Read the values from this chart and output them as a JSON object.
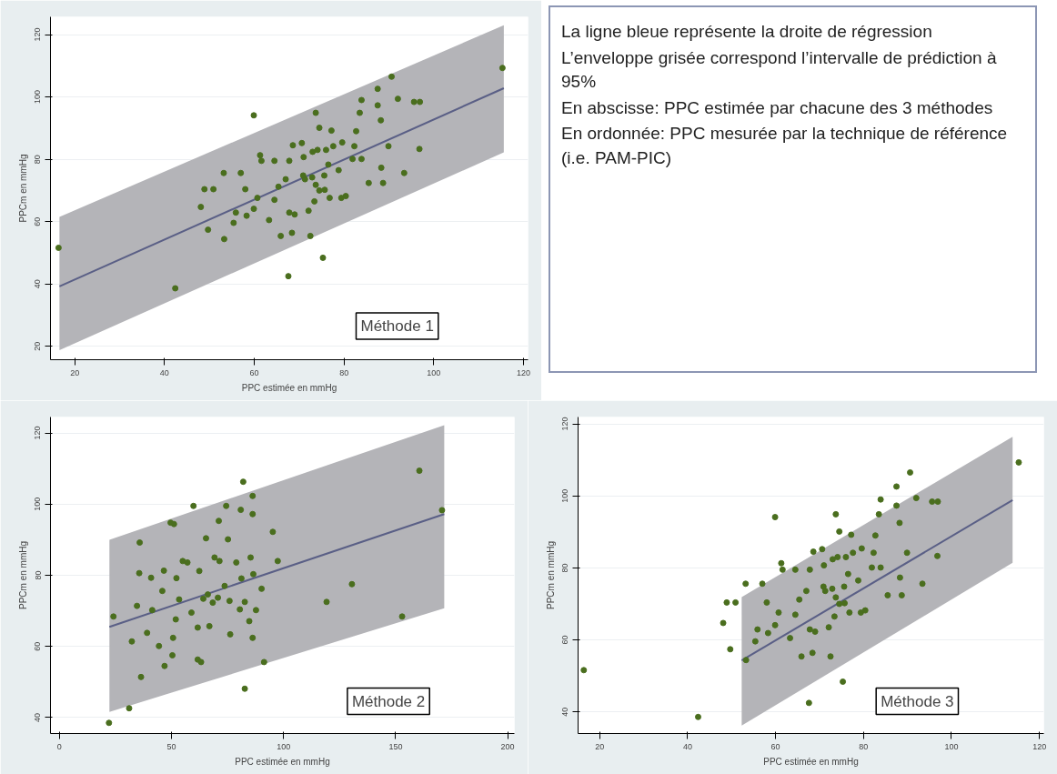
{
  "chart_data": [
    {
      "type": "scatter",
      "title": "Méthode 1",
      "xlabel": "PPC estimée en mmHg",
      "ylabel": "PPCm en mmHg",
      "xlim": [
        14.6,
        121
      ],
      "ylim": [
        15.7,
        125.7
      ],
      "xticks": [
        20,
        40,
        60,
        80,
        100,
        120
      ],
      "yticks": [
        20,
        40,
        60,
        80,
        100,
        120
      ],
      "grid": "y",
      "marker": "circle",
      "series": [
        {
          "type": "line",
          "marker": "none",
          "color": "#5a5f86",
          "x": [
            16.6,
            115.6
          ],
          "values": [
            39.2,
            102.8
          ],
          "lower": [
            18.8,
            82.2
          ],
          "upper": [
            61.5,
            123
          ]
        },
        {
          "type": "scatter",
          "color": "#4a6e1e",
          "x": [
            16.4,
            42.4,
            59.9,
            67.6,
            75.3,
            72.5,
            65.9,
            68.4,
            53.3,
            49.7,
            48.1,
            48.9,
            50.9,
            53.2,
            57.0,
            58.0,
            55.4,
            55.9,
            58.3,
            59.9,
            60.7,
            61.3,
            61.6,
            64.5,
            63.3,
            64.5,
            65.4,
            67.0,
            67.8,
            68.6,
            70.6,
            67.8,
            69.0,
            72.1,
            71.3,
            72.9,
            73.7,
            74.5,
            71.0,
            73.0,
            74.1,
            73.7,
            74.5,
            77.2,
            76.0,
            76.5,
            75.6,
            76.8,
            78.8,
            77.6,
            79.6,
            79.4,
            80.4,
            81.9,
            82.3,
            82.7,
            83.5,
            83.9,
            83.9,
            85.5,
            87.5,
            87.5,
            88.2,
            88.3,
            88.7,
            89.9,
            90.6,
            92.0,
            93.4,
            95.6,
            96.9,
            96.8,
            115.3,
            73.4,
            75.7,
            70.9
          ],
          "values": [
            51.6,
            38.6,
            94.1,
            42.5,
            48.4,
            55.4,
            55.4,
            56.4,
            54.4,
            57.4,
            64.7,
            70.4,
            70.4,
            75.6,
            75.6,
            70.4,
            59.6,
            62.9,
            61.9,
            64.1,
            67.6,
            81.3,
            79.5,
            79.5,
            60.5,
            67.0,
            71.2,
            73.6,
            79.5,
            84.5,
            85.2,
            62.9,
            62.3,
            63.5,
            73.6,
            74.2,
            71.8,
            70.0,
            80.7,
            82.4,
            83.0,
            94.9,
            90.1,
            89.2,
            83.0,
            78.3,
            74.8,
            67.6,
            76.5,
            84.2,
            85.4,
            67.6,
            68.2,
            80.1,
            84.2,
            89.0,
            94.9,
            99.0,
            80.1,
            72.4,
            102.6,
            97.3,
            92.5,
            77.3,
            72.4,
            84.2,
            106.5,
            99.4,
            75.6,
            98.4,
            98.4,
            83.3,
            109.3,
            66.5,
            70.2,
            74.8
          ]
        }
      ]
    },
    {
      "type": "other",
      "annotations": [
        "La ligne bleue représente la droite de régression",
        "L’enveloppe grisée correspond l’intervalle de prédiction à 95%",
        "En abscisse: PPC estimée par chacune des 3 méthodes",
        "En ordonnée: PPC mesurée par la technique de référence (i.e. PAM-PIC)"
      ]
    },
    {
      "type": "scatter",
      "title": "Méthode 2",
      "xlabel": "PPC estimée en mmHg",
      "ylabel": "PPCm en mmHg",
      "xlim": [
        -4,
        203
      ],
      "ylim": [
        35.5,
        124.5
      ],
      "xticks": [
        0,
        50,
        100,
        150,
        200
      ],
      "yticks": [
        40,
        60,
        80,
        100,
        120
      ],
      "grid": "y",
      "marker": "circle",
      "series": [
        {
          "type": "line",
          "marker": "none",
          "color": "#5a5f86",
          "x": [
            22.3,
            171.7
          ],
          "values": [
            65.5,
            97.2
          ],
          "lower": [
            41.6,
            70.7
          ],
          "upper": [
            90.0,
            122.2
          ]
        },
        {
          "type": "scatter",
          "color": "#4a6e1e",
          "x": [
            22.1,
            31.1,
            36.4,
            32.3,
            24.1,
            34.6,
            35.6,
            35.8,
            40.9,
            41.4,
            39.1,
            44.4,
            46.9,
            50.4,
            50.7,
            45.9,
            46.6,
            49.6,
            51.1,
            52.2,
            51.9,
            53.4,
            55.0,
            57.1,
            58.9,
            59.8,
            61.7,
            63.2,
            61.7,
            62.4,
            64.2,
            65.4,
            66.2,
            66.9,
            68.4,
            69.2,
            70.7,
            71.1,
            71.4,
            73.7,
            74.4,
            75.2,
            75.9,
            76.2,
            78.9,
            80.9,
            82.0,
            81.2,
            82.7,
            82.7,
            80.5,
            84.7,
            85.3,
            86.2,
            86.2,
            86.2,
            86.5,
            87.7,
            90.2,
            91.3,
            95.2,
            97.4,
            119.2,
            130.5,
            152.9,
            160.6,
            170.7
          ],
          "values": [
            38.5,
            42.6,
            51.4,
            61.4,
            68.4,
            71.4,
            80.6,
            89.2,
            79.3,
            70.2,
            63.8,
            60.1,
            54.5,
            57.5,
            62.4,
            75.6,
            81.3,
            94.8,
            94.4,
            79.2,
            67.6,
            73.2,
            84.0,
            83.6,
            69.5,
            99.5,
            56.3,
            55.6,
            65.3,
            81.2,
            73.4,
            90.4,
            74.6,
            65.7,
            72.3,
            85.0,
            73.7,
            95.3,
            84.0,
            77.0,
            99.5,
            90.1,
            72.8,
            63.4,
            83.6,
            98.4,
            106.3,
            79.1,
            72.5,
            48.1,
            70.4,
            67.1,
            85.0,
            102.3,
            97.2,
            62.4,
            80.3,
            70.2,
            76.2,
            55.6,
            92.2,
            84.0,
            72.5,
            77.5,
            68.4,
            109.4,
            98.3
          ]
        }
      ]
    },
    {
      "type": "scatter",
      "title": "Méthode 3",
      "xlabel": "PPC estimée en mmHg",
      "ylabel": "PPCm en mmHg",
      "xlim": [
        15.1,
        121
      ],
      "ylim": [
        34,
        121.9
      ],
      "xticks": [
        20,
        40,
        60,
        80,
        100,
        120
      ],
      "yticks": [
        40,
        60,
        80,
        100,
        120
      ],
      "grid": "y",
      "marker": "circle",
      "series": [
        {
          "type": "line",
          "marker": "none",
          "color": "#5a5f86",
          "x": [
            52.3,
            113.9
          ],
          "values": [
            54.3,
            98.8
          ],
          "lower": [
            36.2,
            81.4
          ],
          "upper": [
            71.9,
            116.4
          ]
        },
        {
          "type": "scatter",
          "color": "#4a6e1e",
          "x": [
            16.4,
            42.4,
            59.9,
            67.6,
            75.3,
            72.5,
            65.9,
            68.4,
            53.3,
            49.7,
            48.1,
            48.9,
            50.9,
            53.2,
            57.0,
            58.0,
            55.4,
            55.9,
            58.3,
            59.9,
            60.7,
            61.3,
            61.6,
            64.5,
            63.3,
            64.5,
            65.4,
            67.0,
            67.8,
            68.6,
            70.6,
            67.8,
            69.0,
            72.1,
            71.3,
            72.9,
            73.7,
            74.5,
            71.0,
            73.0,
            74.1,
            73.7,
            74.5,
            77.2,
            76.0,
            76.5,
            75.6,
            76.8,
            78.8,
            77.6,
            79.6,
            79.4,
            80.4,
            81.9,
            82.3,
            82.7,
            83.5,
            83.9,
            83.9,
            85.5,
            87.5,
            87.5,
            88.2,
            88.3,
            88.7,
            89.9,
            90.6,
            92.0,
            93.4,
            95.6,
            96.9,
            96.8,
            115.3,
            73.4,
            75.7,
            70.9
          ],
          "values": [
            51.6,
            38.6,
            94.1,
            42.5,
            48.4,
            55.4,
            55.4,
            56.4,
            54.4,
            57.4,
            64.7,
            70.4,
            70.4,
            75.6,
            75.6,
            70.4,
            59.6,
            62.9,
            61.9,
            64.1,
            67.6,
            81.3,
            79.5,
            79.5,
            60.5,
            67.0,
            71.2,
            73.6,
            79.5,
            84.5,
            85.2,
            62.9,
            62.3,
            63.5,
            73.6,
            74.2,
            71.8,
            70.0,
            80.7,
            82.4,
            83.0,
            94.9,
            90.1,
            89.2,
            83.0,
            78.3,
            74.8,
            67.6,
            76.5,
            84.2,
            85.4,
            67.6,
            68.2,
            80.1,
            84.2,
            89.0,
            94.9,
            99.0,
            80.1,
            72.4,
            102.6,
            97.3,
            92.5,
            77.3,
            72.4,
            84.2,
            106.5,
            99.4,
            75.6,
            98.4,
            98.4,
            83.3,
            109.3,
            66.5,
            70.2,
            74.8
          ]
        }
      ]
    }
  ]
}
